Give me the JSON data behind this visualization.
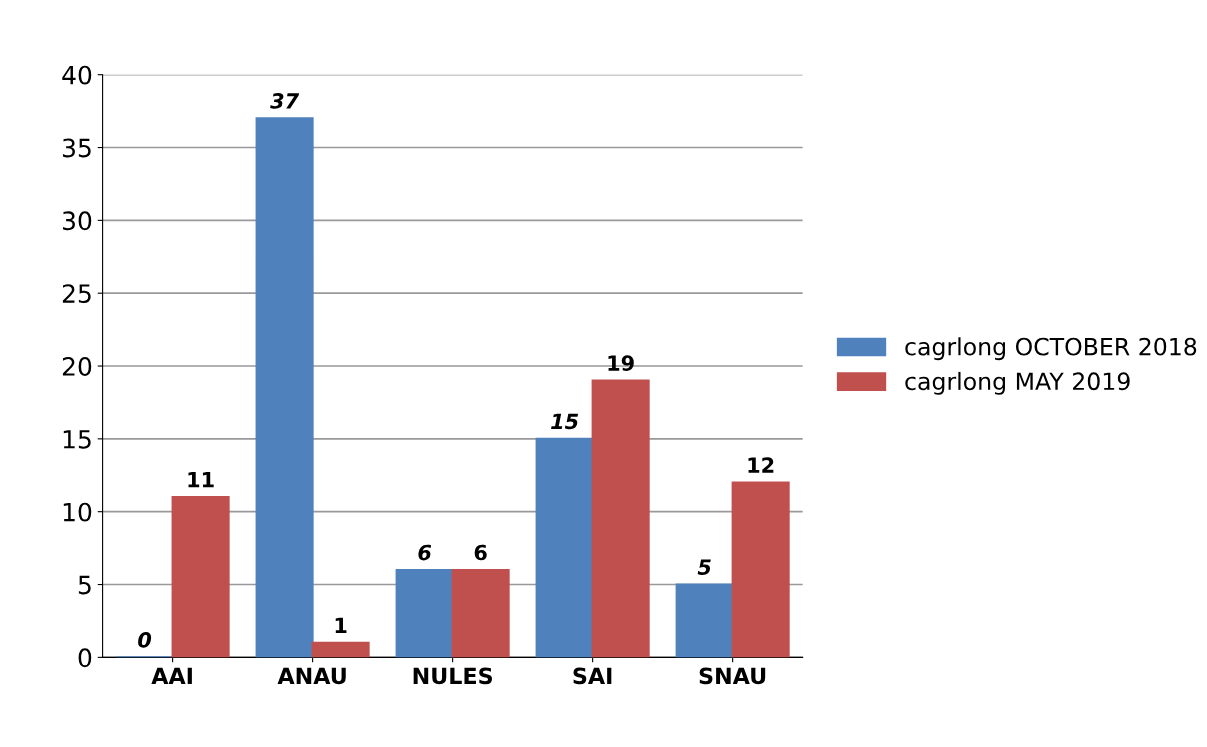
{
  "chart_data": {
    "type": "bar",
    "categories": [
      "AAI",
      "ANAU",
      "NULES",
      "SAI",
      "SNAU"
    ],
    "series": [
      {
        "name": "cagrlong OCTOBER 2018",
        "color": "#4f81bd",
        "values": [
          0,
          37,
          6,
          15,
          5
        ]
      },
      {
        "name": "cagrlong MAY 2019",
        "color": "#c0504d",
        "values": [
          11,
          1,
          6,
          19,
          12
        ]
      }
    ],
    "ylim": [
      0,
      40
    ],
    "yticks": [
      0,
      5,
      10,
      15,
      20,
      25,
      30,
      35,
      40
    ],
    "grid": "y",
    "legend": "right",
    "data_labels": true
  }
}
